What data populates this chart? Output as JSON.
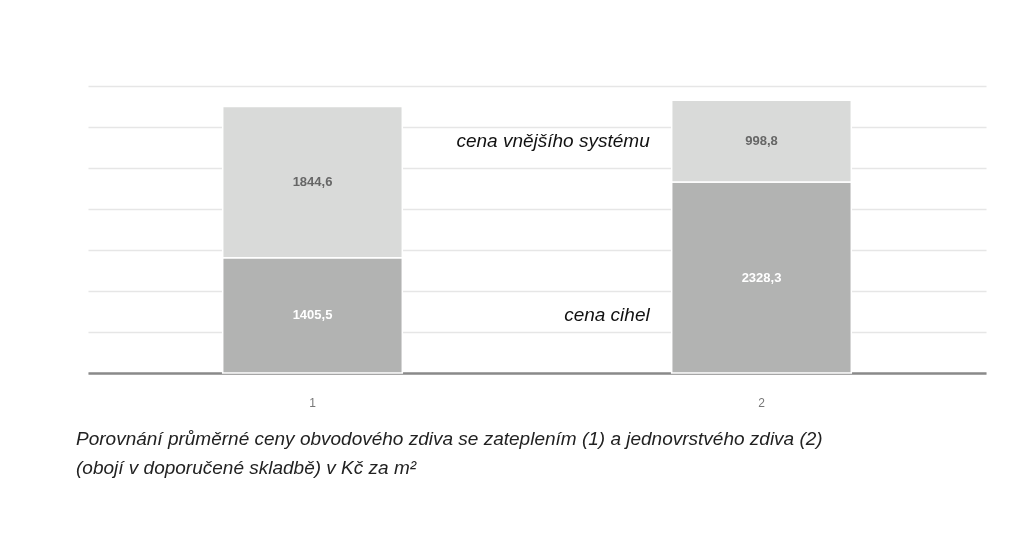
{
  "chart_data": {
    "type": "bar",
    "stacked": true,
    "categories": [
      "1",
      "2"
    ],
    "series": [
      {
        "name": "cena cihel",
        "color": "#b2b3b2",
        "values": [
          1405.5,
          2328.3
        ],
        "value_labels": [
          "1405,5",
          "2328,3"
        ]
      },
      {
        "name": "cena vnějšího systému",
        "color": "#d9dad9",
        "values": [
          1844.6,
          998.8
        ],
        "value_labels": [
          "1844,6",
          "998,8"
        ]
      }
    ],
    "ylim": [
      0,
      3500
    ],
    "yticks": [
      {
        "value": 0,
        "label": null
      },
      {
        "value": 500,
        "label": null
      },
      {
        "value": 1000,
        "label": null
      },
      {
        "value": 1500,
        "label": null
      },
      {
        "value": 2000,
        "label": null
      },
      {
        "value": 2500,
        "label": null
      },
      {
        "value": 3000,
        "label": null
      },
      {
        "value": 3500,
        "label": null
      }
    ],
    "grid": "y",
    "tick_labels": "x",
    "annotations": [
      "Porovnání průměrné ceny obvodového zdiva se zateplením (1) a jednovrstvého zdiva (2) (obojí v doporučené skladbě) v Kč za m²"
    ]
  }
}
